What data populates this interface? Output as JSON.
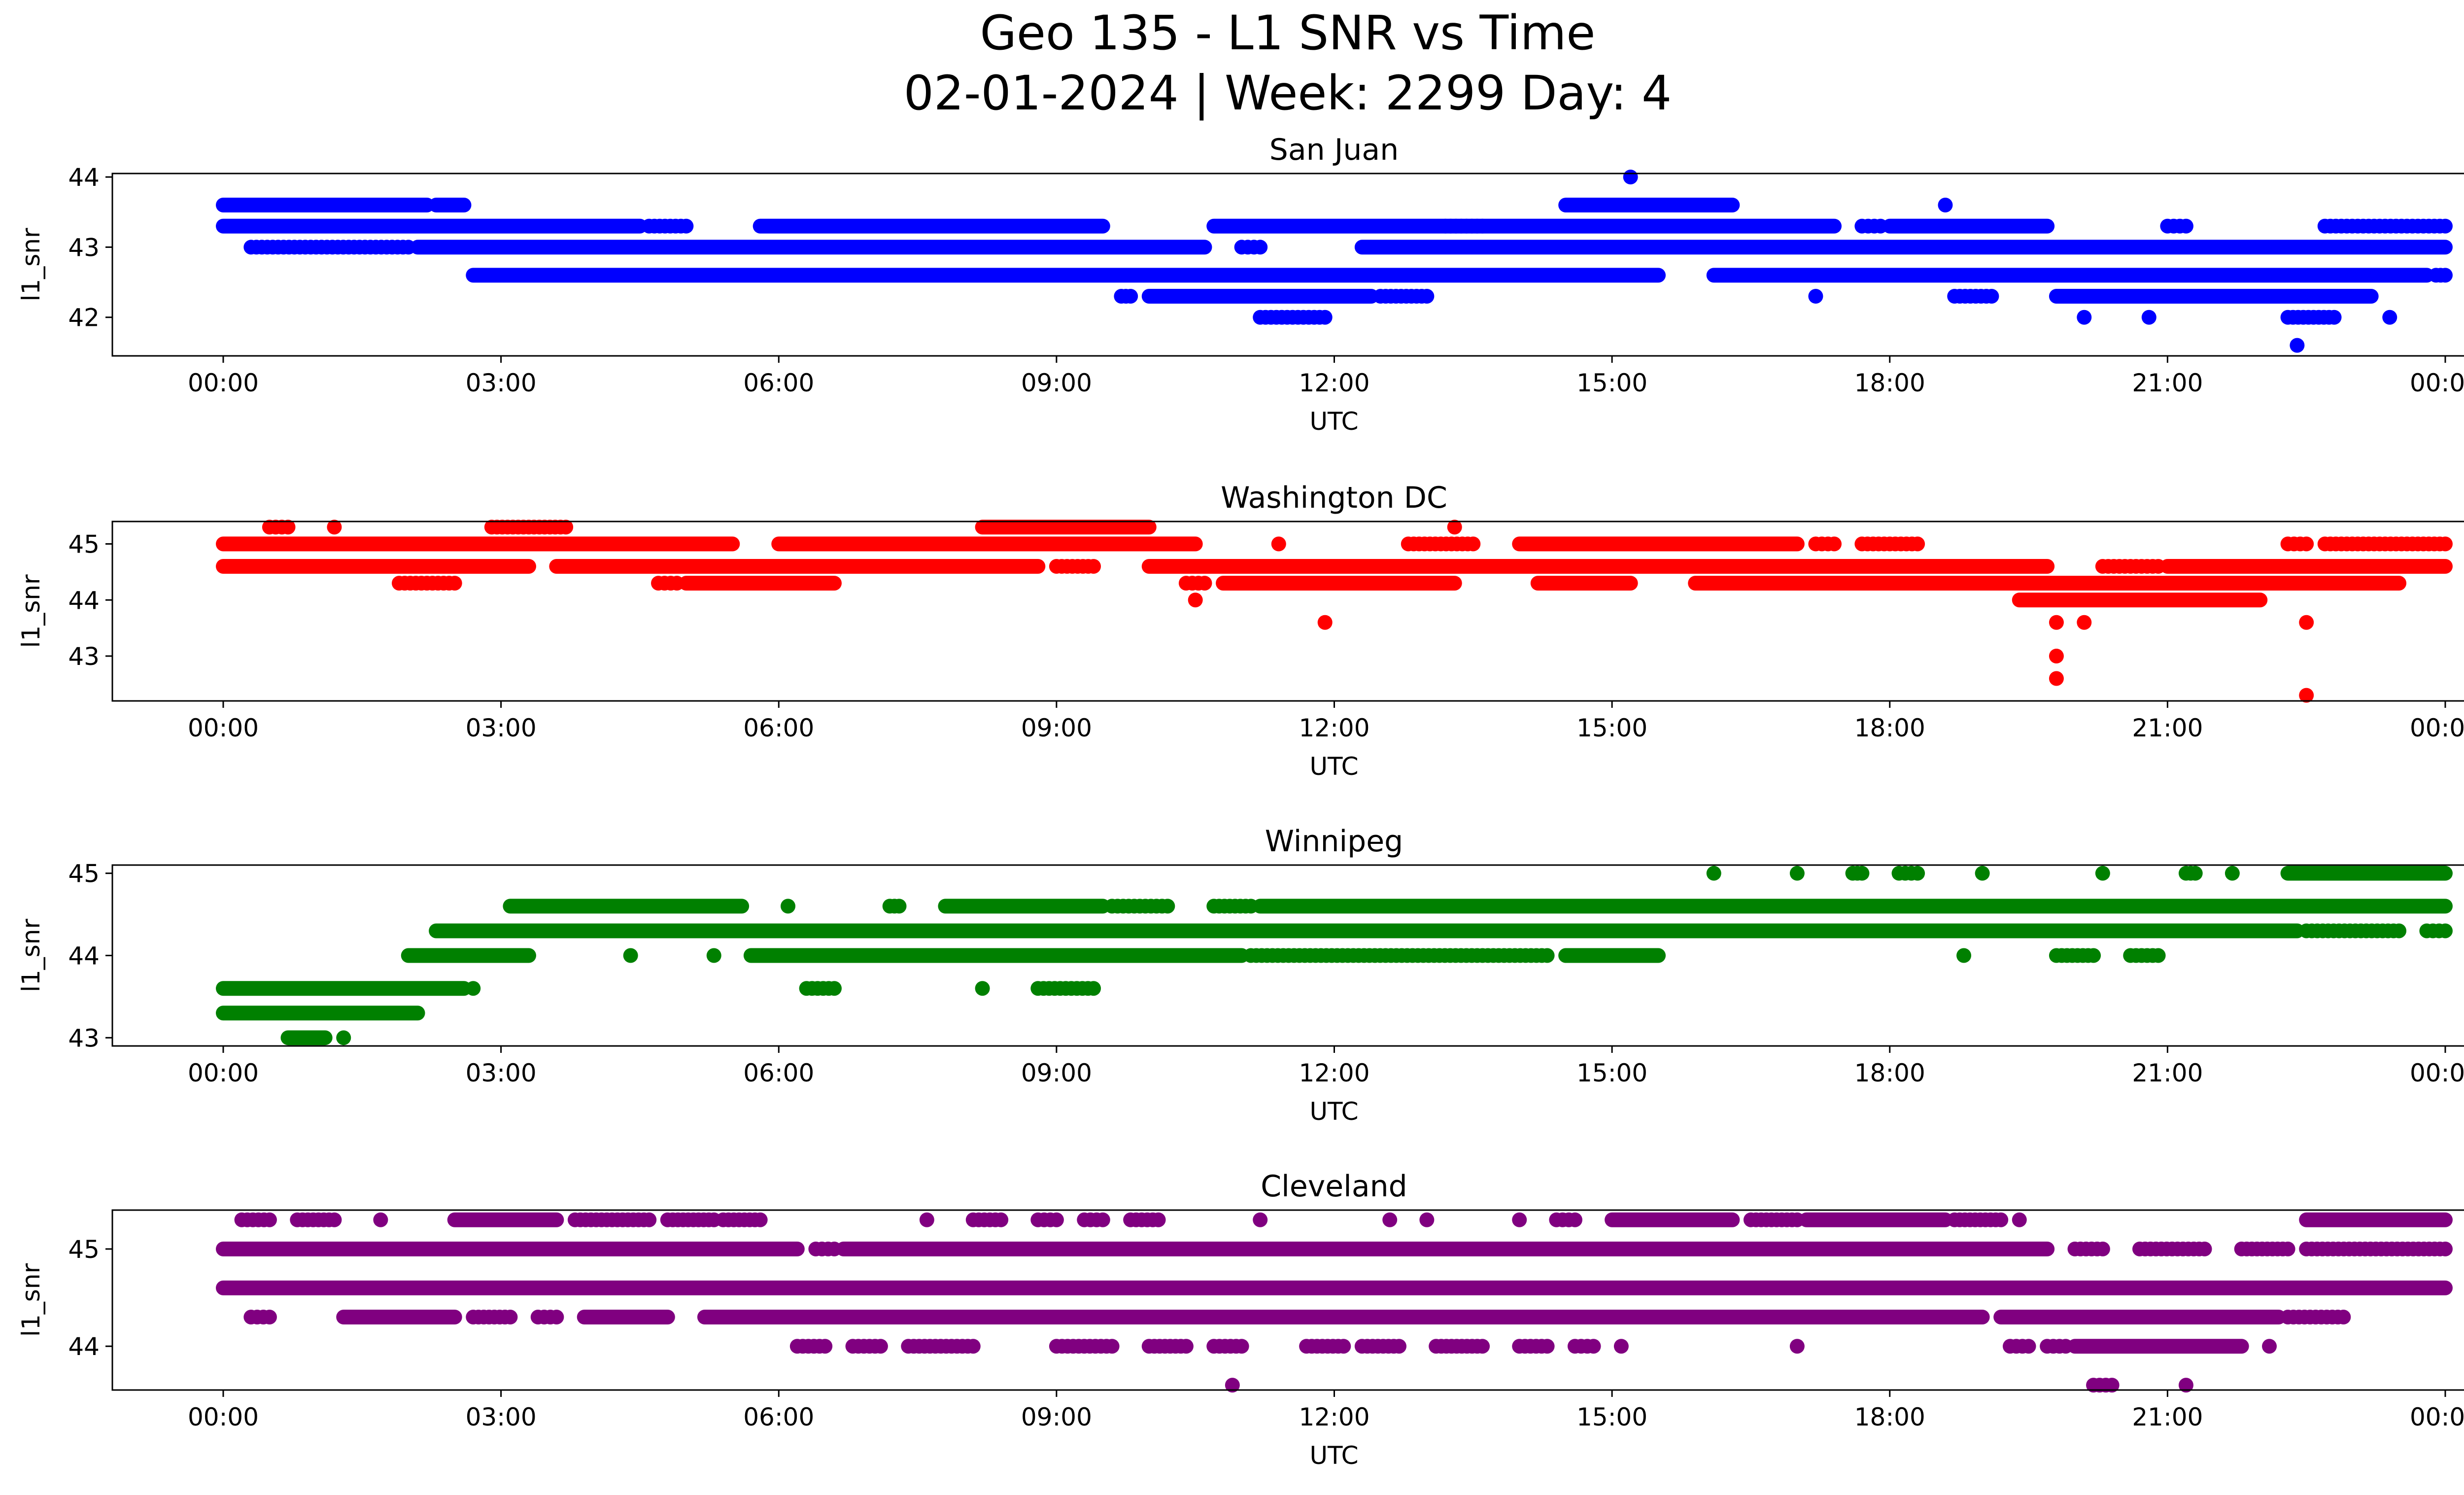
{
  "figure": {
    "title_line1": "Geo 135 - L1 SNR vs Time",
    "title_line2": "02-01-2024 | Week: 2299 Day: 4"
  },
  "chart_data": [
    {
      "type": "scatter",
      "title": "San Juan",
      "xlabel": "UTC",
      "ylabel": "l1_snr",
      "x_unit": "hours UTC (0-24)",
      "xticks": [
        "00:00",
        "03:00",
        "06:00",
        "09:00",
        "12:00",
        "15:00",
        "18:00",
        "21:00",
        "00:00"
      ],
      "yticks": [
        42,
        43,
        44
      ],
      "ylim": [
        41.45,
        44.05
      ],
      "color": "#0000ff",
      "levels": [
        {
          "y": 43.6,
          "ranges": [
            [
              0.0,
              2.2
            ],
            [
              2.3,
              2.6
            ],
            [
              14.5,
              16.3
            ]
          ],
          "scatter": [
            [
              2.4,
              2.5
            ],
            [
              18.6,
              18.6
            ]
          ]
        },
        {
          "y": 43.3,
          "ranges": [
            [
              0.0,
              4.5
            ],
            [
              5.8,
              9.5
            ],
            [
              10.7,
              17.4
            ],
            [
              18.0,
              19.7
            ]
          ],
          "scatter": [
            [
              4.6,
              5.0
            ],
            [
              13.2,
              13.6
            ],
            [
              17.7,
              17.9
            ],
            [
              21.0,
              21.2
            ],
            [
              22.7,
              24.0
            ]
          ]
        },
        {
          "y": 43.0,
          "ranges": [
            [
              2.1,
              10.6
            ],
            [
              12.3,
              24.0
            ]
          ],
          "scatter": [
            [
              0.3,
              2.0
            ],
            [
              11.0,
              11.2
            ]
          ]
        },
        {
          "y": 42.6,
          "ranges": [
            [
              2.7,
              15.5
            ],
            [
              16.1,
              23.8
            ]
          ],
          "scatter": [
            [
              23.9,
              24.0
            ]
          ]
        },
        {
          "y": 42.3,
          "ranges": [
            [
              10.0,
              12.4
            ],
            [
              19.8,
              23.2
            ]
          ],
          "scatter": [
            [
              9.7,
              9.8
            ],
            [
              12.5,
              13.0
            ],
            [
              17.2,
              17.2
            ],
            [
              18.7,
              19.1
            ]
          ]
        },
        {
          "y": 42.0,
          "ranges": [],
          "scatter": [
            [
              11.2,
              11.9
            ],
            [
              20.1,
              20.1
            ],
            [
              20.8,
              20.8
            ],
            [
              22.3,
              22.8
            ],
            [
              23.4,
              23.4
            ]
          ]
        },
        {
          "y": 44.0,
          "ranges": [],
          "scatter": [
            [
              15.2,
              15.2
            ]
          ]
        },
        {
          "y": 41.6,
          "ranges": [],
          "scatter": [
            [
              22.4,
              22.4
            ]
          ]
        }
      ]
    },
    {
      "type": "scatter",
      "title": "Washington DC",
      "xlabel": "UTC",
      "ylabel": "l1_snr",
      "x_unit": "hours UTC (0-24)",
      "xticks": [
        "00:00",
        "03:00",
        "06:00",
        "09:00",
        "12:00",
        "15:00",
        "18:00",
        "21:00",
        "00:00"
      ],
      "yticks": [
        43,
        44,
        45
      ],
      "ylim": [
        42.2,
        45.4
      ],
      "color": "#ff0000",
      "levels": [
        {
          "y": 45.3,
          "ranges": [
            [
              8.2,
              10.0
            ]
          ],
          "scatter": [
            [
              0.5,
              0.7
            ],
            [
              1.2,
              1.2
            ],
            [
              2.9,
              3.7
            ],
            [
              13.3,
              13.3
            ]
          ]
        },
        {
          "y": 45.0,
          "ranges": [
            [
              0.0,
              5.5
            ],
            [
              6.0,
              10.5
            ],
            [
              14.0,
              17.0
            ]
          ],
          "scatter": [
            [
              11.4,
              11.4
            ],
            [
              12.8,
              13.5
            ],
            [
              17.2,
              17.4
            ],
            [
              17.7,
              18.3
            ],
            [
              22.3,
              22.5
            ],
            [
              22.7,
              24.0
            ]
          ]
        },
        {
          "y": 44.6,
          "ranges": [
            [
              0.0,
              3.3
            ],
            [
              3.6,
              8.8
            ],
            [
              10.0,
              19.7
            ],
            [
              21.0,
              24.0
            ]
          ],
          "scatter": [
            [
              9.0,
              9.4
            ],
            [
              20.3,
              20.9
            ]
          ]
        },
        {
          "y": 44.3,
          "ranges": [
            [
              5.0,
              6.6
            ],
            [
              10.8,
              13.3
            ],
            [
              14.2,
              15.2
            ],
            [
              15.9,
              23.5
            ]
          ],
          "scatter": [
            [
              1.9,
              2.5
            ],
            [
              4.7,
              4.9
            ],
            [
              10.4,
              10.6
            ]
          ]
        },
        {
          "y": 44.0,
          "ranges": [
            [
              19.4,
              22.0
            ]
          ],
          "scatter": [
            [
              10.5,
              10.5
            ]
          ]
        },
        {
          "y": 43.6,
          "ranges": [],
          "scatter": [
            [
              11.9,
              11.9
            ],
            [
              19.8,
              19.8
            ],
            [
              20.1,
              20.1
            ],
            [
              22.5,
              22.5
            ]
          ]
        },
        {
          "y": 43.0,
          "ranges": [],
          "scatter": [
            [
              19.8,
              19.8
            ]
          ]
        },
        {
          "y": 42.6,
          "ranges": [],
          "scatter": [
            [
              19.8,
              19.8
            ]
          ]
        },
        {
          "y": 42.3,
          "ranges": [],
          "scatter": [
            [
              22.5,
              22.5
            ]
          ]
        }
      ]
    },
    {
      "type": "scatter",
      "title": "Winnipeg",
      "xlabel": "UTC",
      "ylabel": "l1_snr",
      "x_unit": "hours UTC (0-24)",
      "xticks": [
        "00:00",
        "03:00",
        "06:00",
        "09:00",
        "12:00",
        "15:00",
        "18:00",
        "21:00",
        "00:00"
      ],
      "yticks": [
        43,
        44,
        45
      ],
      "ylim": [
        42.9,
        45.1
      ],
      "color": "#008000",
      "levels": [
        {
          "y": 45.0,
          "ranges": [
            [
              22.3,
              24.0
            ]
          ],
          "scatter": [
            [
              16.1,
              16.1
            ],
            [
              17.0,
              17.0
            ],
            [
              17.6,
              17.7
            ],
            [
              18.1,
              18.3
            ],
            [
              19.0,
              19.0
            ],
            [
              20.3,
              20.3
            ],
            [
              21.2,
              21.3
            ],
            [
              21.7,
              21.7
            ]
          ]
        },
        {
          "y": 44.6,
          "ranges": [
            [
              3.1,
              5.6
            ],
            [
              7.8,
              9.5
            ],
            [
              11.2,
              24.0
            ]
          ],
          "scatter": [
            [
              6.1,
              6.1
            ],
            [
              7.2,
              7.3
            ],
            [
              9.6,
              10.2
            ],
            [
              10.7,
              11.1
            ]
          ]
        },
        {
          "y": 44.3,
          "ranges": [
            [
              2.3,
              22.4
            ]
          ],
          "scatter": [
            [
              22.5,
              23.5
            ],
            [
              23.8,
              24.0
            ]
          ]
        },
        {
          "y": 44.0,
          "ranges": [
            [
              2.0,
              3.3
            ],
            [
              5.7,
              11.0
            ],
            [
              14.5,
              15.5
            ]
          ],
          "scatter": [
            [
              4.4,
              4.4
            ],
            [
              5.3,
              5.3
            ],
            [
              11.1,
              14.3
            ],
            [
              18.8,
              18.8
            ],
            [
              19.8,
              20.2
            ],
            [
              20.6,
              20.9
            ]
          ]
        },
        {
          "y": 43.6,
          "ranges": [
            [
              0.0,
              2.6
            ]
          ],
          "scatter": [
            [
              2.7,
              2.7
            ],
            [
              6.3,
              6.6
            ],
            [
              8.2,
              8.2
            ],
            [
              8.8,
              9.4
            ]
          ]
        },
        {
          "y": 43.3,
          "ranges": [
            [
              0.0,
              2.1
            ]
          ],
          "scatter": []
        },
        {
          "y": 43.0,
          "ranges": [
            [
              0.7,
              1.1
            ]
          ],
          "scatter": [
            [
              1.3,
              1.3
            ]
          ]
        }
      ]
    },
    {
      "type": "scatter",
      "title": "Cleveland",
      "xlabel": "UTC",
      "ylabel": "l1_snr",
      "x_unit": "hours UTC (0-24)",
      "xticks": [
        "00:00",
        "03:00",
        "06:00",
        "09:00",
        "12:00",
        "15:00",
        "18:00",
        "21:00",
        "00:00"
      ],
      "yticks": [
        44,
        45
      ],
      "ylim": [
        43.55,
        45.4
      ],
      "color": "#800080",
      "levels": [
        {
          "y": 45.3,
          "ranges": [
            [
              2.5,
              3.6
            ],
            [
              15.0,
              16.3
            ],
            [
              17.1,
              18.6
            ],
            [
              22.5,
              24.0
            ]
          ],
          "scatter": [
            [
              0.2,
              0.5
            ],
            [
              0.8,
              1.2
            ],
            [
              1.7,
              1.7
            ],
            [
              3.8,
              4.6
            ],
            [
              4.8,
              5.3
            ],
            [
              5.4,
              5.8
            ],
            [
              7.6,
              7.6
            ],
            [
              8.1,
              8.4
            ],
            [
              8.8,
              9.0
            ],
            [
              9.3,
              9.5
            ],
            [
              9.8,
              10.1
            ],
            [
              11.2,
              11.2
            ],
            [
              12.6,
              12.6
            ],
            [
              13.0,
              13.0
            ],
            [
              14.0,
              14.0
            ],
            [
              14.4,
              14.6
            ],
            [
              16.5,
              17.0
            ],
            [
              18.7,
              19.2
            ],
            [
              19.4,
              19.4
            ]
          ]
        },
        {
          "y": 45.0,
          "ranges": [
            [
              0.0,
              6.2
            ],
            [
              6.7,
              19.7
            ]
          ],
          "scatter": [
            [
              6.4,
              6.6
            ],
            [
              20.0,
              20.3
            ],
            [
              20.7,
              21.4
            ],
            [
              21.8,
              22.3
            ],
            [
              22.5,
              24.0
            ]
          ]
        },
        {
          "y": 44.6,
          "ranges": [
            [
              0.0,
              24.0
            ]
          ],
          "scatter": []
        },
        {
          "y": 44.3,
          "ranges": [
            [
              1.3,
              2.5
            ],
            [
              3.9,
              4.8
            ],
            [
              5.2,
              19.0
            ],
            [
              19.2,
              22.2
            ]
          ],
          "scatter": [
            [
              0.3,
              0.5
            ],
            [
              2.7,
              3.1
            ],
            [
              3.4,
              3.6
            ],
            [
              18.0,
              18.5
            ],
            [
              22.3,
              22.9
            ]
          ]
        },
        {
          "y": 44.0,
          "ranges": [
            [
              20.0,
              21.8
            ]
          ],
          "scatter": [
            [
              6.2,
              6.5
            ],
            [
              6.8,
              7.1
            ],
            [
              7.4,
              8.1
            ],
            [
              9.0,
              9.6
            ],
            [
              10.0,
              10.4
            ],
            [
              10.7,
              11.0
            ],
            [
              11.7,
              12.1
            ],
            [
              12.3,
              12.7
            ],
            [
              13.1,
              13.6
            ],
            [
              14.0,
              14.3
            ],
            [
              14.6,
              14.8
            ],
            [
              15.1,
              15.1
            ],
            [
              17.0,
              17.0
            ],
            [
              19.3,
              19.5
            ],
            [
              19.7,
              19.9
            ],
            [
              22.1,
              22.1
            ]
          ]
        },
        {
          "y": 43.6,
          "ranges": [],
          "scatter": [
            [
              10.9,
              10.9
            ],
            [
              20.2,
              20.4
            ],
            [
              21.2,
              21.2
            ]
          ]
        }
      ]
    }
  ]
}
